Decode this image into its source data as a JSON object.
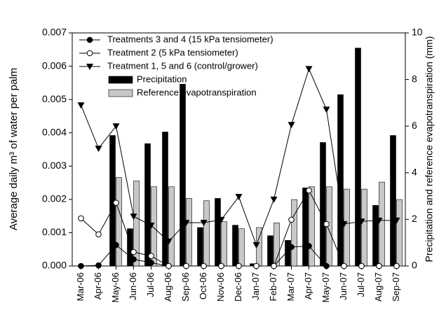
{
  "chart_data": {
    "type": "bar-line",
    "categories": [
      "Mar-06",
      "Apr-06",
      "May-06",
      "Jun-06",
      "Jul-06",
      "Aug-06",
      "Sep-06",
      "Oct-06",
      "Nov-06",
      "Dec-06",
      "Jan-07",
      "Feb-07",
      "Mar-07",
      "Apr-07",
      "May-07",
      "Jun-07",
      "Jul-07",
      "Aug-07",
      "Sep-07"
    ],
    "ylabel": "Average daily m³ of water per palm",
    "y2label": "Precipitation and reference evapotranspiration (mm)",
    "ylim": [
      0,
      0.007
    ],
    "yticks": [
      {
        "value": 0,
        "label": "0.000"
      },
      0.001,
      0.002,
      0.003,
      0.004,
      0.005,
      0.006,
      0.007
    ],
    "y2lim": [
      0,
      10
    ],
    "y2ticks": [
      0,
      2,
      4,
      6,
      8,
      10
    ],
    "legend": "upper left",
    "series": [
      {
        "name": "Treatments 3 and 4 (15 kPa tensiometer)",
        "type": "line",
        "marker": "filled-circle",
        "color": "#000000",
        "axis": "y",
        "values": [
          0,
          2e-05,
          0.00063,
          0.0002,
          0.0001,
          0,
          0,
          0,
          0,
          0,
          0,
          0,
          0.00057,
          0.0006,
          0,
          0,
          0,
          0,
          0
        ]
      },
      {
        "name": "Treatment 2 (5 kPa tensiometer)",
        "type": "line",
        "marker": "open-circle",
        "color": "#000000",
        "axis": "y",
        "values": [
          0.00143,
          0.00095,
          0.0019,
          0.00042,
          0.0003,
          0,
          0,
          0,
          0,
          0,
          0,
          0,
          0.00139,
          0.00227,
          0.00126,
          0,
          0,
          0,
          0
        ]
      },
      {
        "name": "Treatment 1, 5 and 6 (control/grower)",
        "type": "line",
        "marker": "triangle-down",
        "color": "#000000",
        "axis": "y",
        "values": [
          0.00483,
          0.00353,
          0.0042,
          0.00149,
          0.00122,
          0.00074,
          0.0013,
          0.0013,
          0.00139,
          0.00208,
          0.00063,
          0.002,
          0.00424,
          0.00592,
          0.0047,
          0.00126,
          0.00134,
          0.00137,
          0.00137
        ]
      },
      {
        "name": "Precipitation",
        "type": "bar",
        "color": "#000000",
        "axis": "y2",
        "values": [
          0,
          0,
          5.6,
          1.6,
          5.25,
          5.75,
          7.8,
          1.65,
          2.9,
          1.75,
          0.1,
          1.3,
          1.1,
          3.35,
          5.3,
          7.35,
          9.35,
          2.6,
          5.6
        ]
      },
      {
        "name": "Reference evapotranspiration",
        "type": "bar",
        "color": "#c8c8c8",
        "axis": "y2",
        "values": [
          0,
          0,
          3.8,
          3.65,
          3.4,
          3.4,
          2.9,
          2.8,
          1.9,
          1.6,
          1.65,
          1.85,
          2.85,
          3.4,
          3.4,
          3.3,
          3.3,
          3.6,
          2.85
        ]
      }
    ]
  }
}
